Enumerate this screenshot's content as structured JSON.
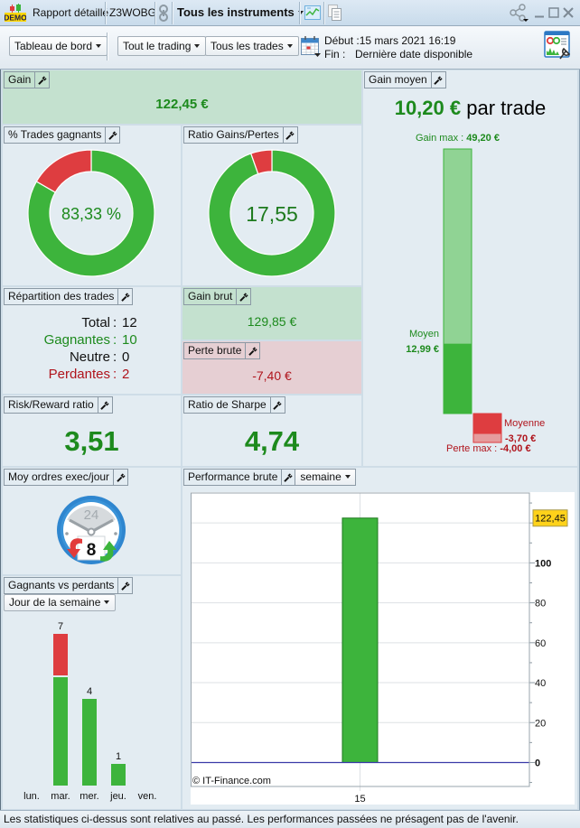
{
  "window": {
    "demo_badge": "DEMO",
    "title": "Rapport détaillé",
    "account": "Z3WOBG",
    "instrument_selector": "Tous les instruments",
    "icons": {
      "app": "demo-chart-icon",
      "link": "link-icon",
      "chart_window": "chart-window-icon",
      "document": "document-icon",
      "share": "share-icon",
      "minimize": "minimize-icon",
      "maximize": "maximize-icon",
      "close": "close-icon"
    }
  },
  "toolbar": {
    "view_select": "Tableau de bord",
    "trading_select": "Tout le trading",
    "trades_select": "Tous les trades",
    "start_label": "Début :",
    "start_value": "15 mars 2021 16:19",
    "end_label": "Fin :",
    "end_value": "Dernière date disponible",
    "icons": {
      "calendar": "calendar-icon",
      "settings": "report-settings-icon"
    }
  },
  "panels": {
    "gain": {
      "label": "Gain",
      "value": "122,45 €"
    },
    "win_rate": {
      "label": "% Trades gagnants",
      "value": "83,33 %"
    },
    "gain_loss_ratio": {
      "label": "Ratio Gains/Pertes",
      "value": "17,55"
    },
    "avg_gain": {
      "label": "Gain moyen",
      "value": "10,20 €",
      "suffix": "par trade",
      "max_gain_label": "Gain max :",
      "max_gain": "49,20 €",
      "avg_win_label": "Moyen",
      "avg_win": "12,99 €",
      "avg_loss_label": "Moyenne",
      "avg_loss": "-3,70 €",
      "max_loss_label": "Perte max :",
      "max_loss": "-4,00 €"
    },
    "distribution": {
      "label": "Répartition des trades",
      "rows": [
        {
          "name": "Total",
          "value": "12",
          "tone": "neutral"
        },
        {
          "name": "Gagnantes",
          "value": "10",
          "tone": "gain"
        },
        {
          "name": "Neutre",
          "value": "0",
          "tone": "neutral"
        },
        {
          "name": "Perdantes",
          "value": "2",
          "tone": "loss"
        }
      ],
      "separator": ":"
    },
    "gross_gain": {
      "label": "Gain brut",
      "value": "129,85 €"
    },
    "gross_loss": {
      "label": "Perte brute",
      "value": "-7,40 €"
    },
    "risk_reward": {
      "label": "Risk/Reward ratio",
      "value": "3,51"
    },
    "sharpe": {
      "label": "Ratio de Sharpe",
      "value": "4,74"
    },
    "orders_per_day": {
      "label": "Moy ordres exec/jour",
      "clock_text": "24",
      "value": "8"
    },
    "winners_vs_losers": {
      "label": "Gagnants vs perdants",
      "period_select": "Jour de la semaine"
    },
    "performance": {
      "label": "Performance brute",
      "period_select": "semaine"
    }
  },
  "colors": {
    "gain_text": "#1d8a1d",
    "loss_text": "#b0141c",
    "bar_green": "#3db43c",
    "bar_green_light": "#90d394",
    "bar_red": "#de3d40",
    "bar_red_light": "#e59b9d",
    "badge": "#ffd21a",
    "zero_line": "#3a3aa8"
  },
  "chart_data": [
    {
      "id": "win_rate_donut",
      "type": "pie",
      "title": "% Trades gagnants",
      "center_label": "83,33 %",
      "slices": [
        {
          "name": "Gagnants",
          "value": 10
        },
        {
          "name": "Perdants",
          "value": 2
        }
      ]
    },
    {
      "id": "gain_loss_donut",
      "type": "pie",
      "title": "Ratio Gains/Pertes",
      "center_label": "17,55",
      "slices": [
        {
          "name": "Gain brut",
          "value": 129.85
        },
        {
          "name": "Perte brute",
          "value": 7.4
        }
      ]
    },
    {
      "id": "avg_gain_bars",
      "type": "bar",
      "title": "Gain moyen",
      "series": [
        {
          "name": "Gain max",
          "value": 49.2
        },
        {
          "name": "Gain moyen",
          "value": 12.99
        },
        {
          "name": "Perte moyenne",
          "value": -3.7
        },
        {
          "name": "Perte max",
          "value": -4.0
        }
      ]
    },
    {
      "id": "winners_vs_losers",
      "type": "bar",
      "stacked": true,
      "title": "Gagnants vs perdants",
      "xlabel": "Jour de la semaine",
      "categories": [
        "lun.",
        "mar.",
        "mer.",
        "jeu.",
        "ven."
      ],
      "series": [
        {
          "name": "Gagnants",
          "values": [
            0,
            5,
            4,
            1,
            0
          ]
        },
        {
          "name": "Perdants",
          "values": [
            0,
            2,
            0,
            0,
            0
          ]
        }
      ],
      "total_labels": [
        "",
        "7",
        "4",
        "1",
        ""
      ],
      "ylim": [
        0,
        7.5
      ]
    },
    {
      "id": "performance_brute",
      "type": "bar",
      "title": "Performance brute",
      "categories": [
        "15"
      ],
      "values": [
        122.45
      ],
      "value_badge": "122,45",
      "yticks": [
        0,
        20,
        40,
        60,
        80,
        100,
        120
      ],
      "ylim": [
        -12,
        135
      ],
      "y_axis": "right",
      "grid": true,
      "watermark": "© IT-Finance.com"
    }
  ],
  "footer": {
    "disclaimer": "Les statistiques ci-dessus sont relatives au passé. Les performances passées ne présagent pas de l'avenir."
  }
}
